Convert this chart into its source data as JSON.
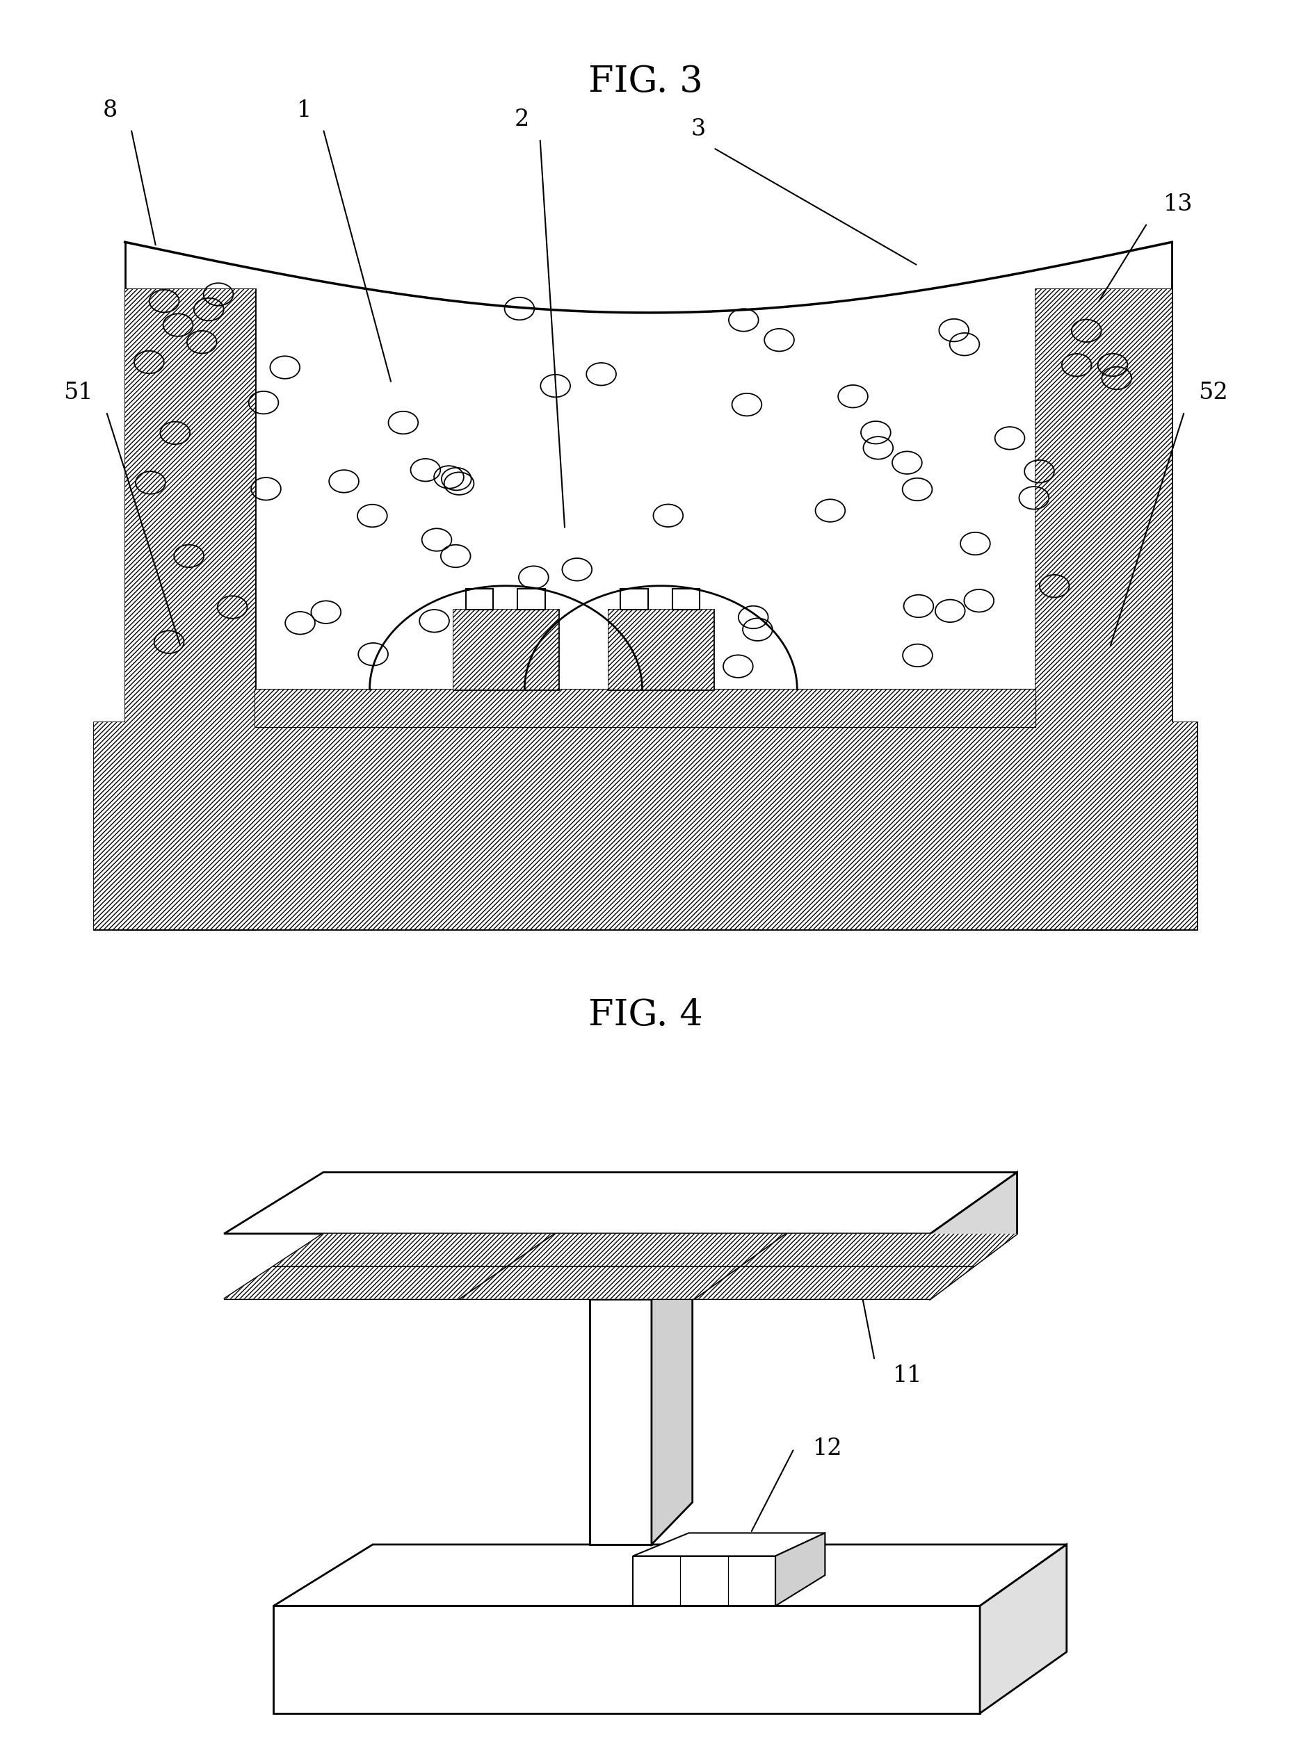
{
  "fig3_title": "FIG. 3",
  "fig4_title": "FIG. 4",
  "background_color": "#ffffff",
  "line_color": "#000000"
}
